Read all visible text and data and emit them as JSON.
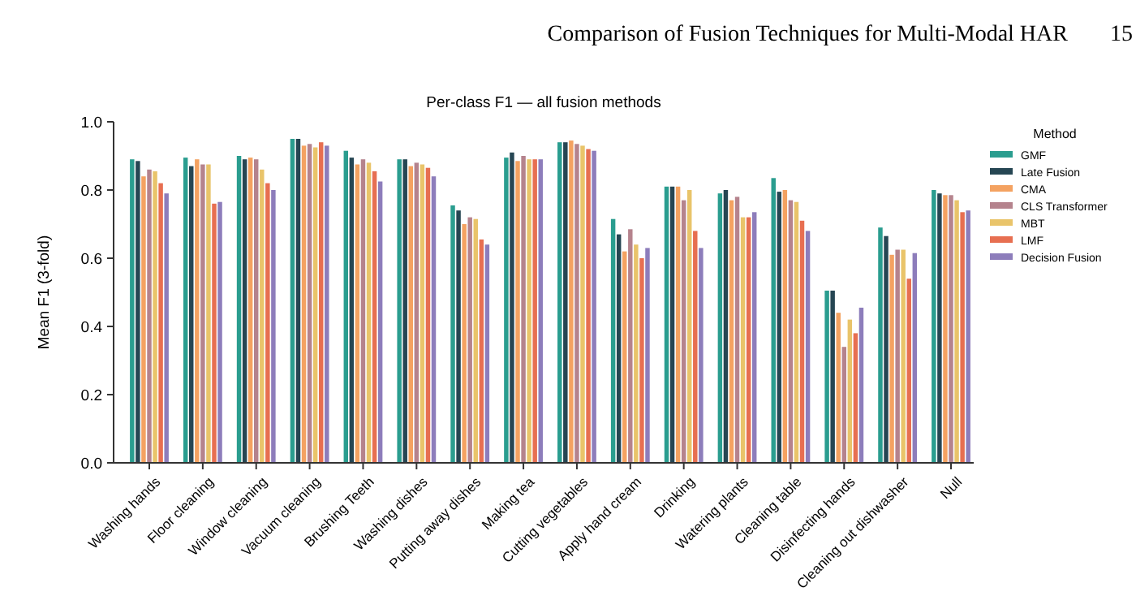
{
  "chart_data": {
    "type": "bar",
    "title": "Per-class F1 — all fusion methods",
    "ylabel": "Mean F1 (3-fold)",
    "legend_title": "Method",
    "legend": "right",
    "annotations": [
      "Comparison of Fusion Techniques for Multi-Modal HAR",
      "15"
    ],
    "categories": [
      "Washing hands",
      "Floor cleaning",
      "Window cleaning",
      "Vacuum cleaning",
      "Brushing Teeth",
      "Washing dishes",
      "Putting away dishes",
      "Making tea",
      "Cutting vegetables",
      "Apply hand cream",
      "Drinking",
      "Watering plants",
      "Cleaning table",
      "Disinfecting hands",
      "Cleaning out dishwasher",
      "Null"
    ],
    "series": [
      {
        "name": "GMF",
        "color": "#2a9d8f",
        "values": [
          0.89,
          0.895,
          0.9,
          0.95,
          0.915,
          0.89,
          0.755,
          0.895,
          0.94,
          0.715,
          0.81,
          0.79,
          0.835,
          0.505,
          0.69,
          0.8
        ]
      },
      {
        "name": "Late Fusion",
        "color": "#264653",
        "values": [
          0.885,
          0.87,
          0.89,
          0.95,
          0.895,
          0.89,
          0.74,
          0.91,
          0.94,
          0.67,
          0.81,
          0.8,
          0.795,
          0.505,
          0.665,
          0.79
        ]
      },
      {
        "name": "CMA",
        "color": "#f4a261",
        "values": [
          0.84,
          0.89,
          0.895,
          0.93,
          0.875,
          0.87,
          0.7,
          0.885,
          0.945,
          0.62,
          0.81,
          0.77,
          0.8,
          0.44,
          0.61,
          0.785
        ]
      },
      {
        "name": "CLS Transformer",
        "color": "#b5838d",
        "values": [
          0.86,
          0.875,
          0.89,
          0.935,
          0.89,
          0.88,
          0.72,
          0.9,
          0.935,
          0.685,
          0.77,
          0.78,
          0.77,
          0.34,
          0.625,
          0.785
        ]
      },
      {
        "name": "MBT",
        "color": "#e9c46a",
        "values": [
          0.855,
          0.875,
          0.86,
          0.925,
          0.88,
          0.875,
          0.715,
          0.89,
          0.93,
          0.64,
          0.8,
          0.72,
          0.765,
          0.42,
          0.625,
          0.77
        ]
      },
      {
        "name": "LMF",
        "color": "#e76f51",
        "values": [
          0.82,
          0.76,
          0.82,
          0.94,
          0.855,
          0.865,
          0.655,
          0.89,
          0.92,
          0.6,
          0.68,
          0.72,
          0.71,
          0.38,
          0.54,
          0.735
        ]
      },
      {
        "name": "Decision Fusion",
        "color": "#8d7dbb",
        "values": [
          0.79,
          0.765,
          0.8,
          0.93,
          0.825,
          0.84,
          0.64,
          0.89,
          0.915,
          0.63,
          0.63,
          0.735,
          0.68,
          0.455,
          0.615,
          0.74
        ]
      }
    ],
    "ylim": [
      0,
      1
    ],
    "yticks": [
      {
        "value": 0,
        "label": "0.0"
      },
      {
        "value": 0.2,
        "label": "0.2"
      },
      {
        "value": 0.4,
        "label": "0.4"
      },
      {
        "value": 0.6,
        "label": "0.6"
      },
      {
        "value": 0.8,
        "label": "0.8"
      },
      {
        "value": 1,
        "label": "1.0"
      }
    ],
    "grid": false
  }
}
